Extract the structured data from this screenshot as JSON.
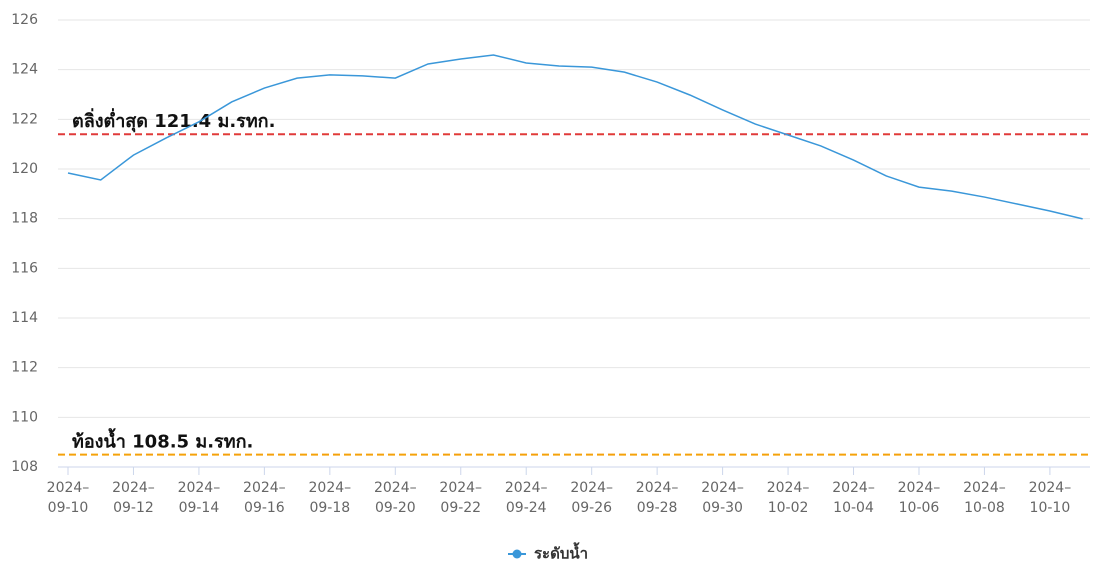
{
  "chart_data": {
    "type": "line",
    "x": [
      "2024-09-10",
      "2024-09-11",
      "2024-09-12",
      "2024-09-13",
      "2024-09-14",
      "2024-09-15",
      "2024-09-16",
      "2024-09-17",
      "2024-09-18",
      "2024-09-19",
      "2024-09-20",
      "2024-09-21",
      "2024-09-22",
      "2024-09-23",
      "2024-09-24",
      "2024-09-25",
      "2024-09-26",
      "2024-09-27",
      "2024-09-28",
      "2024-09-29",
      "2024-09-30",
      "2024-10-01",
      "2024-10-02",
      "2024-10-03",
      "2024-10-04",
      "2024-10-05",
      "2024-10-06",
      "2024-10-07",
      "2024-10-08",
      "2024-10-09",
      "2024-10-10",
      "2024-10-11"
    ],
    "series": [
      {
        "name": "ระดับน้ำ",
        "color": "#3a97d9",
        "values": [
          119.84,
          119.56,
          120.56,
          121.25,
          121.9,
          122.7,
          123.26,
          123.66,
          123.79,
          123.75,
          123.66,
          124.23,
          124.43,
          124.59,
          124.27,
          124.15,
          124.1,
          123.9,
          123.5,
          122.98,
          122.38,
          121.81,
          121.37,
          120.93,
          120.36,
          119.72,
          119.27,
          119.11,
          118.87,
          118.59,
          118.31,
          117.99
        ]
      }
    ],
    "xticks": [
      {
        "value": "2024-09-10",
        "label": "2024–09-10"
      },
      {
        "value": "2024-09-12",
        "label": "2024–09-12"
      },
      {
        "value": "2024-09-14",
        "label": "2024–09-14"
      },
      {
        "value": "2024-09-16",
        "label": "2024–09-16"
      },
      {
        "value": "2024-09-18",
        "label": "2024–09-18"
      },
      {
        "value": "2024-09-20",
        "label": "2024–09-20"
      },
      {
        "value": "2024-09-22",
        "label": "2024–09-22"
      },
      {
        "value": "2024-09-24",
        "label": "2024–09-24"
      },
      {
        "value": "2024-09-26",
        "label": "2024–09-26"
      },
      {
        "value": "2024-09-28",
        "label": "2024–09-28"
      },
      {
        "value": "2024-09-30",
        "label": "2024–09-30"
      },
      {
        "value": "2024-10-02",
        "label": "2024–10-02"
      },
      {
        "value": "2024-10-04",
        "label": "2024–10-04"
      },
      {
        "value": "2024-10-06",
        "label": "2024–10-06"
      },
      {
        "value": "2024-10-08",
        "label": "2024–10-08"
      },
      {
        "value": "2024-10-10",
        "label": "2024–10-10"
      }
    ],
    "ylim": [
      108,
      126
    ],
    "yticks": [
      108,
      110,
      112,
      114,
      116,
      118,
      120,
      122,
      124,
      126
    ],
    "grid": true,
    "reference_lines": [
      {
        "value": 121.4,
        "label": "ตลิ่งต่ำสุด 121.4 ม.รทก.",
        "color": "#e03a3a"
      },
      {
        "value": 108.5,
        "label": "ท้องน้ำ 108.5 ม.รทก.",
        "color": "#f5a20a"
      }
    ],
    "legend": "bottom"
  }
}
